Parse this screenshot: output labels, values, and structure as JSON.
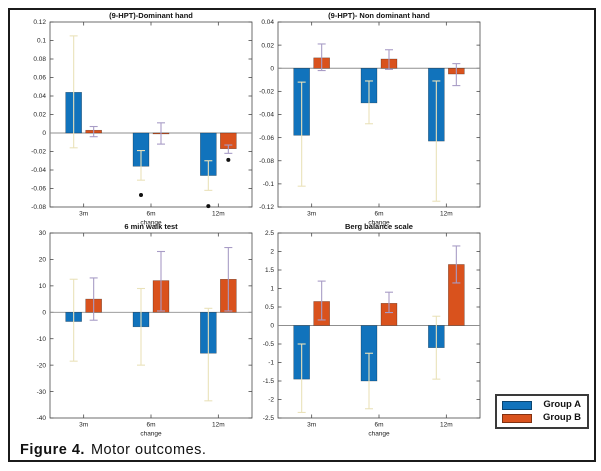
{
  "figure": {
    "caption_prefix": "Figure 4.",
    "caption_text": "Motor outcomes."
  },
  "legend": {
    "position": "outside-bottom-right",
    "items": [
      {
        "label": "Group A",
        "color": "#1173BC"
      },
      {
        "label": "Group B",
        "color": "#D9521D"
      }
    ]
  },
  "colors": {
    "group_a": "#1173BC",
    "group_b": "#D9521D",
    "error_bar_a": "#EAE2BA",
    "error_bar_b": "#A89CC6",
    "axis": "#4a4a4a",
    "zero_line": "#8f8f8f",
    "outlier": "#111111",
    "frame_border": "#1b1b1b"
  },
  "chart_data": [
    {
      "type": "bar",
      "title": "(9-HPT)-Dominant hand",
      "xlabel": "change",
      "categories": [
        "3m",
        "6m",
        "12m"
      ],
      "ylim": [
        -0.08,
        0.12
      ],
      "ytick_step": 0.02,
      "grid": false,
      "series": [
        {
          "name": "Group A",
          "values": [
            0.044,
            -0.036,
            -0.046
          ],
          "err_lo": [
            -0.016,
            -0.051,
            -0.062
          ],
          "err_hi": [
            0.105,
            -0.019,
            -0.03
          ]
        },
        {
          "name": "Group B",
          "values": [
            0.003,
            -0.001,
            -0.017
          ],
          "err_lo": [
            -0.004,
            -0.012,
            -0.022
          ],
          "err_hi": [
            0.007,
            0.011,
            -0.013
          ]
        }
      ],
      "outliers": [
        {
          "series": 0,
          "category": "6m",
          "value": -0.067
        },
        {
          "series": 0,
          "category": "12m",
          "value": -0.079
        },
        {
          "series": 1,
          "category": "12m",
          "value": -0.029
        }
      ]
    },
    {
      "type": "bar",
      "title": "(9-HPT)- Non dominant hand",
      "xlabel": "change",
      "categories": [
        "3m",
        "6m",
        "12m"
      ],
      "ylim": [
        -0.12,
        0.04
      ],
      "ytick_step": 0.02,
      "grid": false,
      "series": [
        {
          "name": "Group A",
          "values": [
            -0.058,
            -0.03,
            -0.063
          ],
          "err_lo": [
            -0.102,
            -0.048,
            -0.115
          ],
          "err_hi": [
            -0.012,
            -0.011,
            -0.011
          ]
        },
        {
          "name": "Group B",
          "values": [
            0.009,
            0.008,
            -0.005
          ],
          "err_lo": [
            -0.002,
            -0.001,
            -0.015
          ],
          "err_hi": [
            0.021,
            0.016,
            0.004
          ]
        }
      ],
      "outliers": []
    },
    {
      "type": "bar",
      "title": "6 min walk test",
      "xlabel": "change",
      "categories": [
        "3m",
        "6m",
        "12m"
      ],
      "ylim": [
        -40,
        30
      ],
      "ytick_step": 10,
      "grid": false,
      "series": [
        {
          "name": "Group A",
          "values": [
            -3.5,
            -5.5,
            -15.5
          ],
          "err_lo": [
            -18.5,
            -20,
            -33.5
          ],
          "err_hi": [
            12.5,
            9,
            1.5
          ]
        },
        {
          "name": "Group B",
          "values": [
            5,
            12,
            12.5
          ],
          "err_lo": [
            -3,
            0.5,
            0.5
          ],
          "err_hi": [
            13,
            23,
            24.5
          ]
        }
      ],
      "outliers": []
    },
    {
      "type": "bar",
      "title": "Berg balance scale",
      "xlabel": "change",
      "categories": [
        "3m",
        "6m",
        "12m"
      ],
      "ylim": [
        -2.5,
        2.5
      ],
      "ytick_step": 0.5,
      "grid": false,
      "series": [
        {
          "name": "Group A",
          "values": [
            -1.45,
            -1.5,
            -0.6
          ],
          "err_lo": [
            -2.35,
            -2.25,
            -1.45
          ],
          "err_hi": [
            -0.5,
            -0.75,
            0.25
          ]
        },
        {
          "name": "Group B",
          "values": [
            0.65,
            0.6,
            1.65
          ],
          "err_lo": [
            0.15,
            0.35,
            1.15
          ],
          "err_hi": [
            1.2,
            0.9,
            2.15
          ]
        }
      ],
      "outliers": []
    }
  ]
}
